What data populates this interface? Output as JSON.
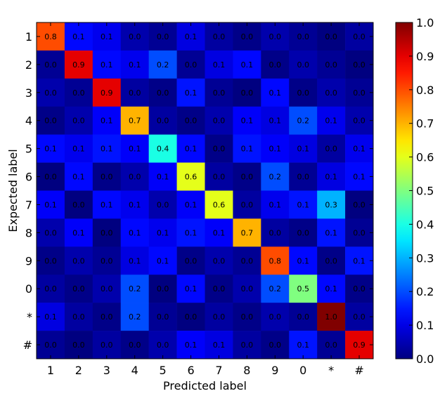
{
  "chart_data": {
    "type": "heatmap",
    "title": "",
    "xlabel": "Predicted label",
    "ylabel": "Expected label",
    "x_categories": [
      "1",
      "2",
      "3",
      "4",
      "5",
      "6",
      "7",
      "8",
      "9",
      "0",
      "*",
      "#"
    ],
    "y_categories": [
      "1",
      "2",
      "3",
      "4",
      "5",
      "6",
      "7",
      "8",
      "9",
      "0",
      "*",
      "#"
    ],
    "values": [
      [
        0.8,
        0.1,
        0.1,
        0.0,
        0.0,
        0.1,
        0.0,
        0.0,
        0.0,
        0.0,
        0.0,
        0.0
      ],
      [
        0.0,
        0.9,
        0.1,
        0.1,
        0.2,
        0.0,
        0.1,
        0.1,
        0.0,
        0.0,
        0.0,
        0.0
      ],
      [
        0.0,
        0.0,
        0.9,
        0.0,
        0.0,
        0.1,
        0.0,
        0.0,
        0.1,
        0.0,
        0.0,
        0.0
      ],
      [
        0.0,
        0.0,
        0.1,
        0.7,
        0.0,
        0.0,
        0.0,
        0.1,
        0.1,
        0.2,
        0.1,
        0.0
      ],
      [
        0.1,
        0.1,
        0.1,
        0.1,
        0.4,
        0.1,
        0.0,
        0.1,
        0.1,
        0.1,
        0.0,
        0.1
      ],
      [
        0.0,
        0.1,
        0.0,
        0.0,
        0.1,
        0.6,
        0.0,
        0.0,
        0.2,
        0.0,
        0.1,
        0.1
      ],
      [
        0.1,
        0.0,
        0.1,
        0.1,
        0.0,
        0.1,
        0.6,
        0.0,
        0.1,
        0.1,
        0.3,
        0.0
      ],
      [
        0.0,
        0.1,
        0.0,
        0.1,
        0.1,
        0.1,
        0.1,
        0.7,
        0.0,
        0.0,
        0.1,
        0.0
      ],
      [
        0.0,
        0.0,
        0.0,
        0.1,
        0.1,
        0.0,
        0.0,
        0.0,
        0.8,
        0.1,
        0.0,
        0.1
      ],
      [
        0.0,
        0.0,
        0.0,
        0.2,
        0.0,
        0.1,
        0.0,
        0.0,
        0.2,
        0.5,
        0.1,
        0.0
      ],
      [
        0.1,
        0.0,
        0.0,
        0.2,
        0.0,
        0.0,
        0.0,
        0.0,
        0.0,
        0.0,
        1.0,
        0.0
      ],
      [
        0.0,
        0.0,
        0.0,
        0.0,
        0.0,
        0.1,
        0.1,
        0.0,
        0.0,
        0.1,
        0.0,
        0.9
      ]
    ],
    "label_values": [
      [
        "0.8",
        "0.1",
        "0.1",
        "0.0",
        "0.0",
        "0.1",
        "0.0",
        "0.0",
        "0.0",
        "0.0",
        "0.0",
        "0.0"
      ],
      [
        "0.0",
        "0.9",
        "0.1",
        "0.1",
        "0.2",
        "0.0",
        "0.1",
        "0.1",
        "0.0",
        "0.0",
        "0.0",
        "0.0"
      ],
      [
        "0.0",
        "0.0",
        "0.9",
        "0.0",
        "0.0",
        "0.1",
        "0.0",
        "0.0",
        "0.1",
        "0.0",
        "0.0",
        "0.0"
      ],
      [
        "0.0",
        "0.0",
        "0.1",
        "0.7",
        "0.0",
        "0.0",
        "0.0",
        "0.1",
        "0.1",
        "0.2",
        "0.1",
        "0.0"
      ],
      [
        "0.1",
        "0.1",
        "0.1",
        "0.1",
        "0.4",
        "0.1",
        "0.0",
        "0.1",
        "0.1",
        "0.1",
        "0.0",
        "0.1"
      ],
      [
        "0.0",
        "0.1",
        "0.0",
        "0.0",
        "0.1",
        "0.6",
        "0.0",
        "0.0",
        "0.2",
        "0.0",
        "0.1",
        "0.1"
      ],
      [
        "0.1",
        "0.0",
        "0.1",
        "0.1",
        "0.0",
        "0.1",
        "0.6",
        "0.0",
        "0.1",
        "0.1",
        "0.3",
        "0.0"
      ],
      [
        "0.0",
        "0.1",
        "0.0",
        "0.1",
        "0.1",
        "0.1",
        "0.1",
        "0.7",
        "0.0",
        "0.0",
        "0.1",
        "0.0"
      ],
      [
        "0.0",
        "0.0",
        "0.0",
        "0.1",
        "0.1",
        "0.0",
        "0.0",
        "0.0",
        "0.8",
        "0.1",
        "0.0",
        "0.1"
      ],
      [
        "0.0",
        "0.0",
        "0.0",
        "0.2",
        "0.0",
        "0.1",
        "0.0",
        "0.0",
        "0.2",
        "0.5",
        "0.1",
        "0.0"
      ],
      [
        "0.1",
        "0.0",
        "0.0",
        "0.2",
        "0.0",
        "0.0",
        "0.0",
        "0.0",
        "0.0",
        "0.0",
        "1.0",
        "0.0"
      ],
      [
        "0.0",
        "0.0",
        "0.0",
        "0.0",
        "0.0",
        "0.1",
        "0.1",
        "0.0",
        "0.0",
        "0.1",
        "0.0",
        "0.9"
      ]
    ],
    "colormap": "jet",
    "colorbar": {
      "range": [
        0.0,
        1.0
      ],
      "ticks": [
        "0.0",
        "0.1",
        "0.2",
        "0.3",
        "0.4",
        "0.5",
        "0.6",
        "0.7",
        "0.8",
        "0.9",
        "1.0"
      ]
    }
  }
}
